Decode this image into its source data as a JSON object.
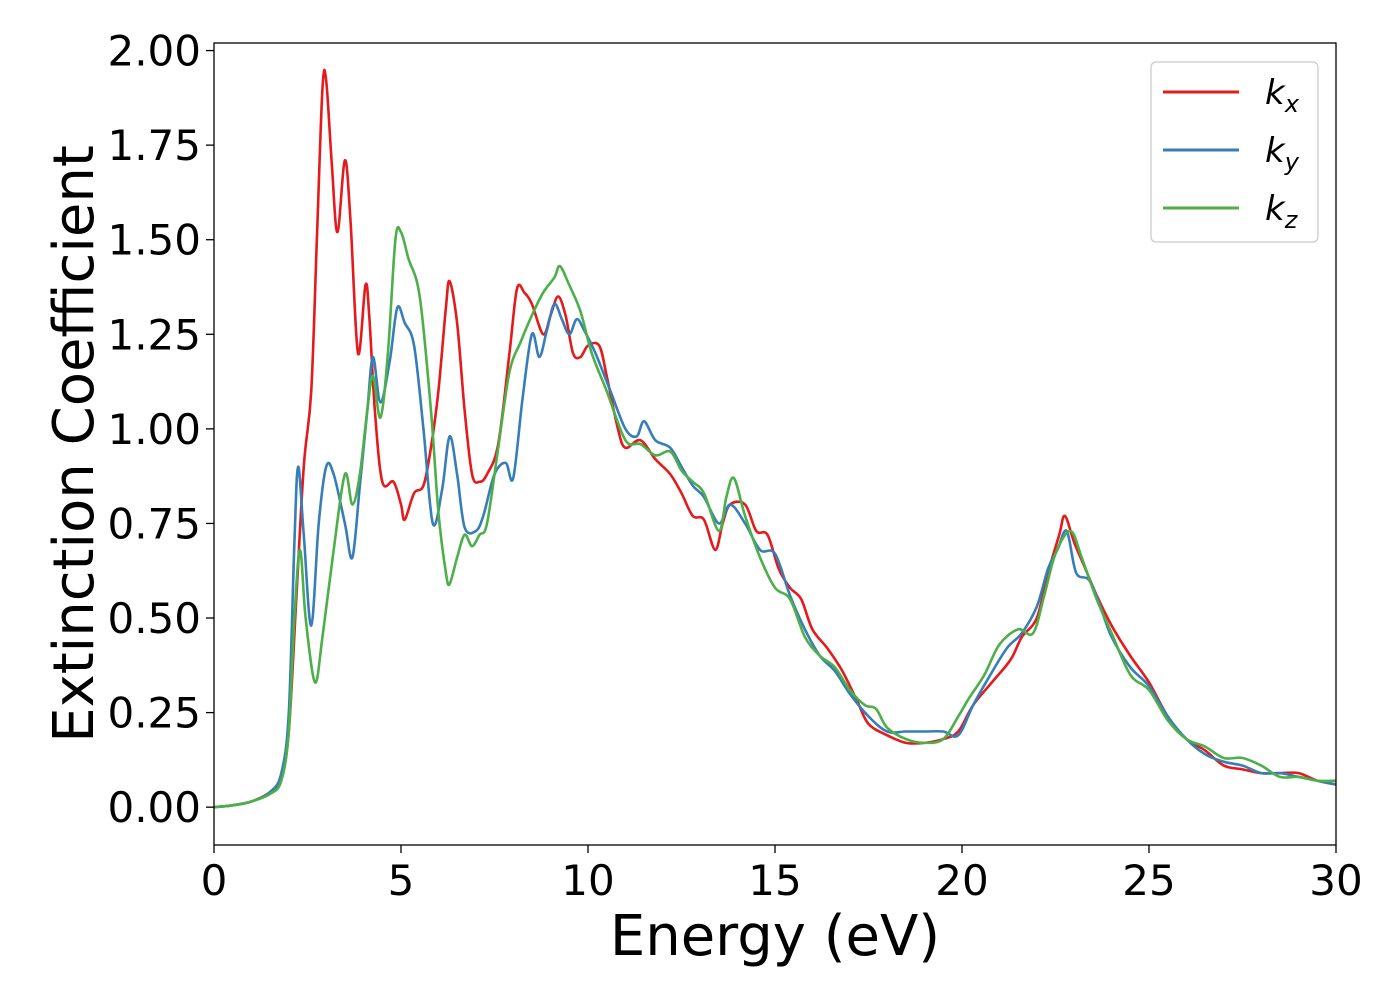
{
  "chart_data": {
    "type": "line",
    "title": "",
    "xlabel": "Energy (eV)",
    "ylabel": "Extinction Coefficient",
    "xlim": [
      0,
      30
    ],
    "ylim": [
      -0.1,
      2.02
    ],
    "xticks": [
      0,
      5,
      10,
      15,
      20,
      25,
      30
    ],
    "xtick_labels": [
      "0",
      "5",
      "10",
      "15",
      "20",
      "25",
      "30"
    ],
    "yticks": [
      0.0,
      0.25,
      0.5,
      0.75,
      1.0,
      1.25,
      1.5,
      1.75,
      2.0
    ],
    "ytick_labels": [
      "0.00",
      "0.25",
      "0.50",
      "0.75",
      "1.00",
      "1.25",
      "1.50",
      "1.75",
      "2.00"
    ],
    "grid": false,
    "legend_position": "top-right",
    "series": [
      {
        "name": "k_x",
        "label_base": "k",
        "label_sub": "x",
        "color": "#e41a1c",
        "points": [
          [
            0,
            0
          ],
          [
            0.5,
            0.005
          ],
          [
            1,
            0.015
          ],
          [
            1.5,
            0.04
          ],
          [
            1.8,
            0.08
          ],
          [
            2.0,
            0.2
          ],
          [
            2.2,
            0.55
          ],
          [
            2.4,
            0.9
          ],
          [
            2.6,
            1.1
          ],
          [
            2.75,
            1.5
          ],
          [
            2.9,
            1.9
          ],
          [
            3.0,
            1.92
          ],
          [
            3.15,
            1.7
          ],
          [
            3.3,
            1.52
          ],
          [
            3.5,
            1.71
          ],
          [
            3.65,
            1.55
          ],
          [
            3.85,
            1.2
          ],
          [
            4.05,
            1.38
          ],
          [
            4.15,
            1.3
          ],
          [
            4.3,
            1.05
          ],
          [
            4.5,
            0.86
          ],
          [
            4.8,
            0.86
          ],
          [
            5.0,
            0.8
          ],
          [
            5.1,
            0.76
          ],
          [
            5.35,
            0.83
          ],
          [
            5.6,
            0.85
          ],
          [
            5.8,
            0.95
          ],
          [
            6.0,
            1.1
          ],
          [
            6.2,
            1.32
          ],
          [
            6.3,
            1.39
          ],
          [
            6.5,
            1.28
          ],
          [
            6.7,
            1.05
          ],
          [
            6.9,
            0.88
          ],
          [
            7.1,
            0.86
          ],
          [
            7.3,
            0.88
          ],
          [
            7.6,
            0.96
          ],
          [
            7.9,
            1.2
          ],
          [
            8.1,
            1.37
          ],
          [
            8.3,
            1.36
          ],
          [
            8.5,
            1.33
          ],
          [
            8.8,
            1.25
          ],
          [
            9.0,
            1.3
          ],
          [
            9.2,
            1.35
          ],
          [
            9.4,
            1.3
          ],
          [
            9.6,
            1.2
          ],
          [
            9.8,
            1.19
          ],
          [
            10.0,
            1.22
          ],
          [
            10.3,
            1.22
          ],
          [
            10.5,
            1.14
          ],
          [
            10.8,
            1.0
          ],
          [
            11.0,
            0.95
          ],
          [
            11.4,
            0.97
          ],
          [
            11.8,
            0.92
          ],
          [
            12.2,
            0.88
          ],
          [
            12.5,
            0.83
          ],
          [
            12.8,
            0.77
          ],
          [
            13.1,
            0.76
          ],
          [
            13.4,
            0.68
          ],
          [
            13.6,
            0.75
          ],
          [
            13.8,
            0.8
          ],
          [
            14.2,
            0.8
          ],
          [
            14.5,
            0.73
          ],
          [
            14.8,
            0.72
          ],
          [
            15.1,
            0.63
          ],
          [
            15.4,
            0.58
          ],
          [
            15.7,
            0.55
          ],
          [
            16.0,
            0.47
          ],
          [
            16.4,
            0.42
          ],
          [
            16.8,
            0.36
          ],
          [
            17.2,
            0.28
          ],
          [
            17.5,
            0.22
          ],
          [
            18.0,
            0.19
          ],
          [
            18.5,
            0.17
          ],
          [
            19.0,
            0.17
          ],
          [
            19.5,
            0.18
          ],
          [
            19.9,
            0.2
          ],
          [
            20.3,
            0.27
          ],
          [
            20.8,
            0.33
          ],
          [
            21.3,
            0.39
          ],
          [
            21.6,
            0.45
          ],
          [
            22.0,
            0.5
          ],
          [
            22.3,
            0.62
          ],
          [
            22.6,
            0.72
          ],
          [
            22.75,
            0.77
          ],
          [
            23.0,
            0.7
          ],
          [
            23.3,
            0.63
          ],
          [
            23.6,
            0.56
          ],
          [
            24.0,
            0.48
          ],
          [
            24.5,
            0.4
          ],
          [
            25.0,
            0.33
          ],
          [
            25.5,
            0.24
          ],
          [
            26.0,
            0.18
          ],
          [
            26.5,
            0.15
          ],
          [
            27.0,
            0.11
          ],
          [
            27.5,
            0.1
          ],
          [
            28.0,
            0.09
          ],
          [
            28.5,
            0.09
          ],
          [
            29.0,
            0.09
          ],
          [
            29.5,
            0.07
          ],
          [
            30.0,
            0.06
          ]
        ]
      },
      {
        "name": "k_y",
        "label_base": "k",
        "label_sub": "y",
        "color": "#377eb8",
        "points": [
          [
            0,
            0
          ],
          [
            0.5,
            0.005
          ],
          [
            1,
            0.015
          ],
          [
            1.5,
            0.04
          ],
          [
            1.8,
            0.09
          ],
          [
            2.0,
            0.25
          ],
          [
            2.15,
            0.7
          ],
          [
            2.25,
            0.9
          ],
          [
            2.4,
            0.72
          ],
          [
            2.6,
            0.48
          ],
          [
            2.8,
            0.75
          ],
          [
            3.0,
            0.9
          ],
          [
            3.2,
            0.88
          ],
          [
            3.5,
            0.75
          ],
          [
            3.7,
            0.66
          ],
          [
            3.9,
            0.85
          ],
          [
            4.1,
            1.05
          ],
          [
            4.25,
            1.19
          ],
          [
            4.45,
            1.07
          ],
          [
            4.7,
            1.18
          ],
          [
            4.9,
            1.32
          ],
          [
            5.1,
            1.28
          ],
          [
            5.35,
            1.22
          ],
          [
            5.6,
            1.0
          ],
          [
            5.85,
            0.75
          ],
          [
            6.1,
            0.84
          ],
          [
            6.3,
            0.98
          ],
          [
            6.5,
            0.88
          ],
          [
            6.7,
            0.74
          ],
          [
            7.0,
            0.73
          ],
          [
            7.2,
            0.77
          ],
          [
            7.5,
            0.88
          ],
          [
            7.8,
            0.91
          ],
          [
            8.0,
            0.87
          ],
          [
            8.25,
            1.08
          ],
          [
            8.5,
            1.25
          ],
          [
            8.7,
            1.19
          ],
          [
            8.9,
            1.26
          ],
          [
            9.1,
            1.33
          ],
          [
            9.3,
            1.29
          ],
          [
            9.5,
            1.25
          ],
          [
            9.7,
            1.29
          ],
          [
            9.9,
            1.26
          ],
          [
            10.2,
            1.2
          ],
          [
            10.6,
            1.1
          ],
          [
            11.0,
            1.0
          ],
          [
            11.3,
            0.98
          ],
          [
            11.5,
            1.02
          ],
          [
            11.8,
            0.97
          ],
          [
            12.2,
            0.95
          ],
          [
            12.5,
            0.9
          ],
          [
            12.8,
            0.85
          ],
          [
            13.1,
            0.82
          ],
          [
            13.5,
            0.75
          ],
          [
            13.8,
            0.8
          ],
          [
            14.2,
            0.75
          ],
          [
            14.6,
            0.68
          ],
          [
            15.0,
            0.67
          ],
          [
            15.4,
            0.56
          ],
          [
            15.8,
            0.47
          ],
          [
            16.2,
            0.4
          ],
          [
            16.6,
            0.36
          ],
          [
            17.0,
            0.3
          ],
          [
            17.5,
            0.24
          ],
          [
            18.0,
            0.2
          ],
          [
            18.5,
            0.2
          ],
          [
            19.0,
            0.2
          ],
          [
            19.5,
            0.2
          ],
          [
            19.9,
            0.19
          ],
          [
            20.3,
            0.27
          ],
          [
            20.7,
            0.34
          ],
          [
            21.2,
            0.42
          ],
          [
            21.6,
            0.46
          ],
          [
            22.0,
            0.53
          ],
          [
            22.3,
            0.63
          ],
          [
            22.55,
            0.68
          ],
          [
            22.8,
            0.73
          ],
          [
            23.05,
            0.62
          ],
          [
            23.4,
            0.6
          ],
          [
            23.7,
            0.53
          ],
          [
            24.0,
            0.45
          ],
          [
            24.5,
            0.37
          ],
          [
            25.0,
            0.32
          ],
          [
            25.5,
            0.24
          ],
          [
            26.0,
            0.18
          ],
          [
            26.5,
            0.14
          ],
          [
            27.0,
            0.12
          ],
          [
            27.5,
            0.11
          ],
          [
            28.0,
            0.09
          ],
          [
            28.5,
            0.09
          ],
          [
            29.0,
            0.08
          ],
          [
            29.5,
            0.07
          ],
          [
            30.0,
            0.06
          ]
        ]
      },
      {
        "name": "k_z",
        "label_base": "k",
        "label_sub": "z",
        "color": "#4daf4a",
        "points": [
          [
            0,
            0
          ],
          [
            0.5,
            0.005
          ],
          [
            1,
            0.015
          ],
          [
            1.5,
            0.035
          ],
          [
            1.8,
            0.07
          ],
          [
            2.0,
            0.2
          ],
          [
            2.15,
            0.5
          ],
          [
            2.3,
            0.68
          ],
          [
            2.45,
            0.5
          ],
          [
            2.7,
            0.33
          ],
          [
            2.9,
            0.45
          ],
          [
            3.2,
            0.68
          ],
          [
            3.5,
            0.88
          ],
          [
            3.7,
            0.8
          ],
          [
            3.9,
            0.88
          ],
          [
            4.1,
            1.05
          ],
          [
            4.25,
            1.14
          ],
          [
            4.45,
            1.03
          ],
          [
            4.65,
            1.2
          ],
          [
            4.85,
            1.5
          ],
          [
            5.0,
            1.52
          ],
          [
            5.2,
            1.45
          ],
          [
            5.5,
            1.35
          ],
          [
            5.8,
            1.05
          ],
          [
            6.0,
            0.78
          ],
          [
            6.2,
            0.62
          ],
          [
            6.3,
            0.59
          ],
          [
            6.5,
            0.66
          ],
          [
            6.7,
            0.72
          ],
          [
            6.9,
            0.69
          ],
          [
            7.1,
            0.72
          ],
          [
            7.3,
            0.75
          ],
          [
            7.6,
            0.95
          ],
          [
            7.9,
            1.15
          ],
          [
            8.2,
            1.23
          ],
          [
            8.5,
            1.3
          ],
          [
            8.8,
            1.36
          ],
          [
            9.1,
            1.4
          ],
          [
            9.25,
            1.43
          ],
          [
            9.5,
            1.38
          ],
          [
            9.8,
            1.31
          ],
          [
            10.1,
            1.2
          ],
          [
            10.5,
            1.1
          ],
          [
            11.0,
            0.97
          ],
          [
            11.4,
            0.96
          ],
          [
            11.8,
            0.93
          ],
          [
            12.2,
            0.94
          ],
          [
            12.5,
            0.89
          ],
          [
            12.8,
            0.86
          ],
          [
            13.1,
            0.83
          ],
          [
            13.5,
            0.73
          ],
          [
            13.7,
            0.82
          ],
          [
            13.9,
            0.87
          ],
          [
            14.2,
            0.77
          ],
          [
            14.6,
            0.66
          ],
          [
            15.0,
            0.58
          ],
          [
            15.4,
            0.55
          ],
          [
            15.8,
            0.45
          ],
          [
            16.2,
            0.4
          ],
          [
            16.6,
            0.37
          ],
          [
            17.0,
            0.31
          ],
          [
            17.4,
            0.27
          ],
          [
            17.7,
            0.26
          ],
          [
            18.0,
            0.21
          ],
          [
            18.5,
            0.18
          ],
          [
            19.0,
            0.17
          ],
          [
            19.5,
            0.18
          ],
          [
            19.9,
            0.24
          ],
          [
            20.2,
            0.29
          ],
          [
            20.6,
            0.35
          ],
          [
            21.0,
            0.43
          ],
          [
            21.5,
            0.47
          ],
          [
            21.9,
            0.46
          ],
          [
            22.2,
            0.56
          ],
          [
            22.5,
            0.67
          ],
          [
            22.9,
            0.73
          ],
          [
            23.2,
            0.66
          ],
          [
            23.6,
            0.55
          ],
          [
            24.0,
            0.46
          ],
          [
            24.5,
            0.35
          ],
          [
            25.0,
            0.31
          ],
          [
            25.5,
            0.23
          ],
          [
            26.0,
            0.18
          ],
          [
            26.5,
            0.16
          ],
          [
            27.0,
            0.13
          ],
          [
            27.5,
            0.13
          ],
          [
            28.0,
            0.11
          ],
          [
            28.5,
            0.08
          ],
          [
            29.0,
            0.08
          ],
          [
            29.5,
            0.07
          ],
          [
            30.0,
            0.07
          ]
        ]
      }
    ]
  }
}
